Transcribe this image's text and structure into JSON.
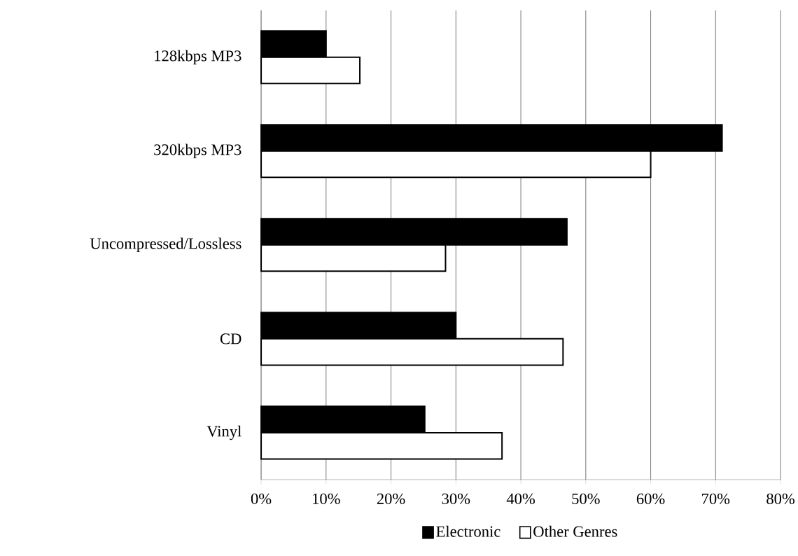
{
  "chart_data": {
    "type": "bar",
    "orientation": "horizontal",
    "categories": [
      "128kbps MP3",
      "320kbps MP3",
      "Uncompressed/Lossless",
      "CD",
      "Vinyl"
    ],
    "series": [
      {
        "name": "Electronic",
        "color": "#000000",
        "values": [
          10,
          71,
          47.1,
          30,
          25.2
        ]
      },
      {
        "name": "Other Genres",
        "color": "#ffffff",
        "values": [
          15.2,
          60,
          28.4,
          46.5,
          37.1
        ]
      }
    ],
    "xlim": [
      0,
      80
    ],
    "xticks": [
      {
        "value": 0,
        "label": "0%"
      },
      {
        "value": 10,
        "label": "10%"
      },
      {
        "value": 20,
        "label": "20%"
      },
      {
        "value": 30,
        "label": "30%"
      },
      {
        "value": 40,
        "label": "40%"
      },
      {
        "value": 50,
        "label": "50%"
      },
      {
        "value": 60,
        "label": "60%"
      },
      {
        "value": 70,
        "label": "70%"
      },
      {
        "value": 80,
        "label": "80%"
      }
    ],
    "grid": "x",
    "legend": "bottom"
  }
}
